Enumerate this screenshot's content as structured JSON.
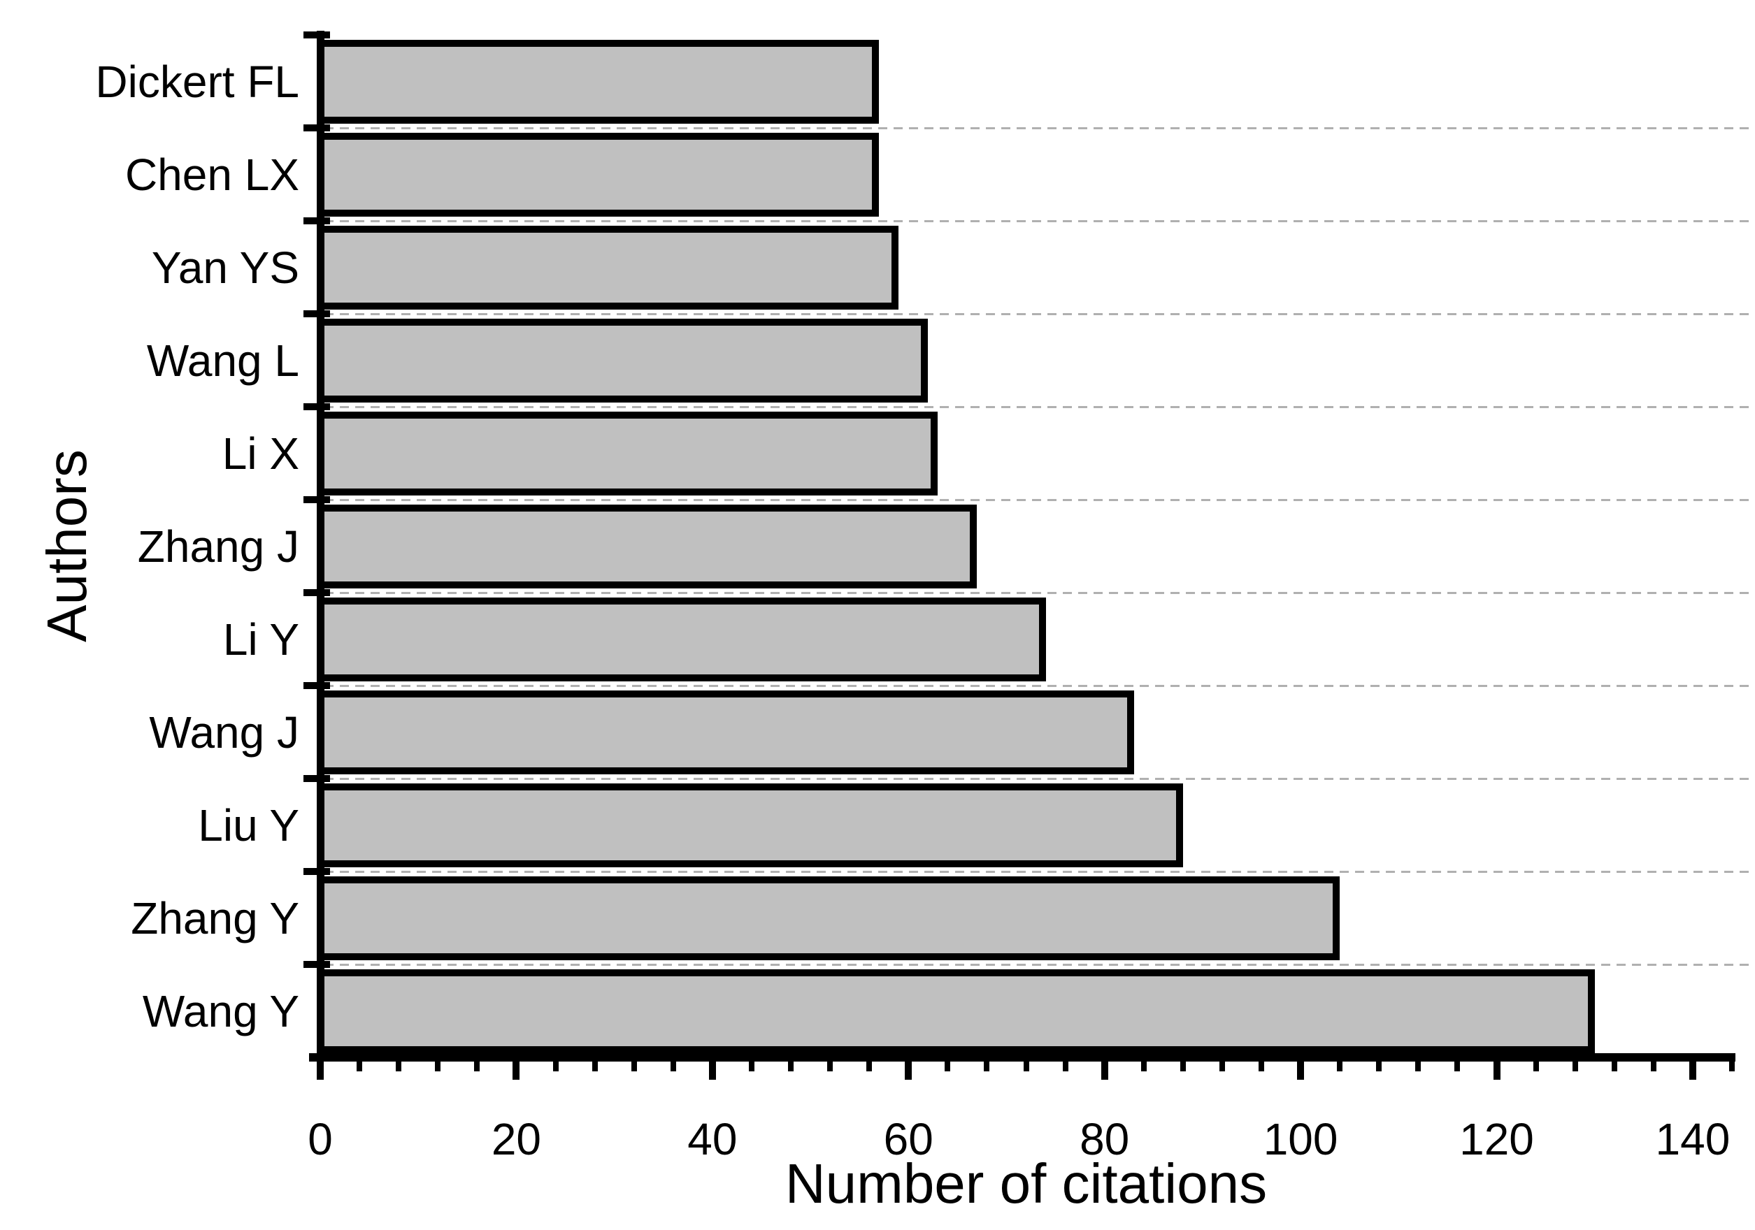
{
  "chart_data": {
    "type": "bar",
    "orientation": "horizontal",
    "xlabel": "Number of citations",
    "ylabel": "Authors",
    "categories": [
      "Dickert FL",
      "Chen LX",
      "Yan YS",
      "Wang L",
      "Li X",
      "Zhang J",
      "Li Y",
      "Wang J",
      "Liu Y",
      "Zhang Y",
      "Wang Y"
    ],
    "values": [
      57,
      57,
      59,
      62,
      63,
      67,
      74,
      83,
      88,
      104,
      130
    ],
    "xlim": [
      0,
      144
    ],
    "x_major_ticks": [
      0,
      20,
      40,
      60,
      80,
      100,
      120,
      140
    ],
    "x_major_tick_labels": [
      "0",
      "20",
      "40",
      "60",
      "80",
      "100",
      "120",
      "140"
    ],
    "x_minor_tick_step": 4,
    "grid": "horizontal-dashed",
    "legend": "none",
    "title": "",
    "colors": {
      "bar_fill": "#c0c0c0",
      "bar_border": "#000000",
      "gridline": "#b0b0b0",
      "text": "#000000",
      "background": "#ffffff"
    }
  }
}
